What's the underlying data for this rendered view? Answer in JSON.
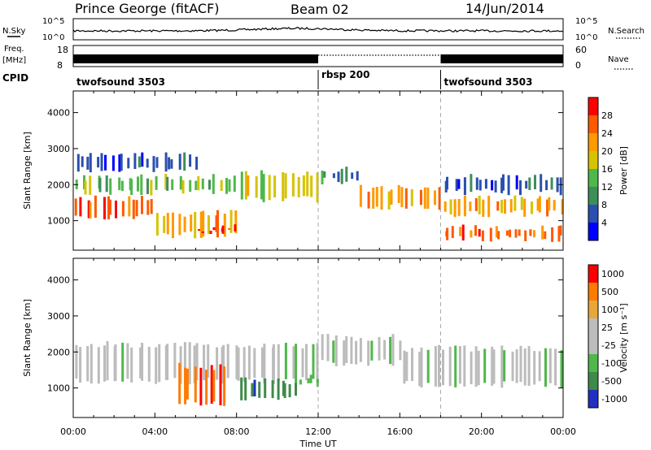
{
  "header": {
    "station": "Prince George (fitACF)",
    "beam": "Beam 02",
    "date": "14/Jun/2014"
  },
  "left_labels": {
    "nsky": "N.Sky",
    "freq_line1": "Freq.",
    "freq_line2": "[MHz]",
    "cpid": "CPID"
  },
  "right_labels": {
    "nsearch": "N.Search",
    "nave": "Nave"
  },
  "noise_panel": {
    "left_ticks": [
      "10^5",
      "10^0"
    ],
    "right_ticks": [
      "10^5",
      "10^0"
    ]
  },
  "freq_panel": {
    "left_ticks": [
      "8",
      "18"
    ],
    "right_ticks": [
      "60",
      "0"
    ]
  },
  "cpid_segments": [
    {
      "label": "twofsound 3503",
      "start_hour": 0,
      "end_hour": 12
    },
    {
      "label": "rbsp 200",
      "start_hour": 12,
      "end_hour": 18
    },
    {
      "label": "twofsound 3503",
      "start_hour": 18,
      "end_hour": 24
    }
  ],
  "chart_data": [
    {
      "type": "heatmap",
      "title": "",
      "xlabel": "Time UT",
      "ylabel": "Slant Range [km]",
      "xlim": [
        0,
        24
      ],
      "ylim": [
        180,
        4600
      ],
      "x_ticks": [
        "00:00",
        "04:00",
        "08:00",
        "12:00",
        "16:00",
        "20:00",
        "00:00"
      ],
      "y_ticks": [
        1000,
        2000,
        3000,
        4000
      ],
      "colorbar": {
        "label": "Power [dB]",
        "ticks": [
          "4",
          "8",
          "12",
          "16",
          "20",
          "24",
          "28"
        ],
        "colors": [
          "#0000ff",
          "#2a4fb0",
          "#3e8e5a",
          "#4fb84a",
          "#d6c300",
          "#ff9a00",
          "#ff5a00",
          "#ff0000"
        ]
      },
      "bands": [
        {
          "t0": 0,
          "t1": 4,
          "r0": 1000,
          "r1": 1700,
          "level": 6
        },
        {
          "t0": 0,
          "t1": 8,
          "r0": 1700,
          "r1": 2300,
          "level": 3
        },
        {
          "t0": 0,
          "t1": 6,
          "r0": 2300,
          "r1": 2900,
          "level": 1
        },
        {
          "t0": 4,
          "t1": 8,
          "r0": 500,
          "r1": 1300,
          "level": 5
        },
        {
          "t0": 6,
          "t1": 8,
          "r0": 600,
          "r1": 900,
          "level": 7
        },
        {
          "t0": 8,
          "t1": 12,
          "r0": 1500,
          "r1": 2400,
          "level": 4
        },
        {
          "t0": 12,
          "t1": 14,
          "r0": 2000,
          "r1": 2500,
          "level": 2
        },
        {
          "t0": 14,
          "t1": 18,
          "r0": 1300,
          "r1": 2000,
          "level": 5
        },
        {
          "t0": 18,
          "t1": 24,
          "r0": 1100,
          "r1": 1700,
          "level": 5
        },
        {
          "t0": 18,
          "t1": 24,
          "r0": 400,
          "r1": 900,
          "level": 6
        },
        {
          "t0": 18,
          "t1": 24,
          "r0": 1700,
          "r1": 2300,
          "level": 1
        }
      ]
    },
    {
      "type": "heatmap",
      "title": "",
      "xlabel": "Time UT",
      "ylabel": "Slant Range [km]",
      "xlim": [
        0,
        24
      ],
      "ylim": [
        180,
        4600
      ],
      "x_ticks": [
        "00:00",
        "04:00",
        "08:00",
        "12:00",
        "16:00",
        "20:00",
        "00:00"
      ],
      "y_ticks": [
        1000,
        2000,
        3000,
        4000
      ],
      "colorbar": {
        "label": "Velocity [m s⁻¹]",
        "ticks": [
          "1000",
          "500",
          "100",
          "25",
          "-25",
          "-100",
          "-500",
          "-1000"
        ],
        "colors": [
          "#2030c0",
          "#3f8a4a",
          "#4fb84a",
          "#bcbcbc",
          "#bcbcbc",
          "#e9a73a",
          "#ff7a00",
          "#ff0000"
        ]
      },
      "bands": [
        {
          "t0": 0,
          "t1": 12,
          "r0": 1100,
          "r1": 2300,
          "level": 3
        },
        {
          "t0": 12,
          "t1": 16,
          "r0": 1600,
          "r1": 2500,
          "level": 3
        },
        {
          "t0": 16,
          "t1": 24,
          "r0": 1000,
          "r1": 2200,
          "level": 3
        },
        {
          "t0": 5,
          "t1": 7.5,
          "r0": 500,
          "r1": 1700,
          "level": 6
        },
        {
          "t0": 8,
          "t1": 11,
          "r0": 600,
          "r1": 1300,
          "level": 1
        },
        {
          "t0": 11,
          "t1": 12,
          "r0": 1000,
          "r1": 1400,
          "level": 2
        }
      ]
    }
  ]
}
